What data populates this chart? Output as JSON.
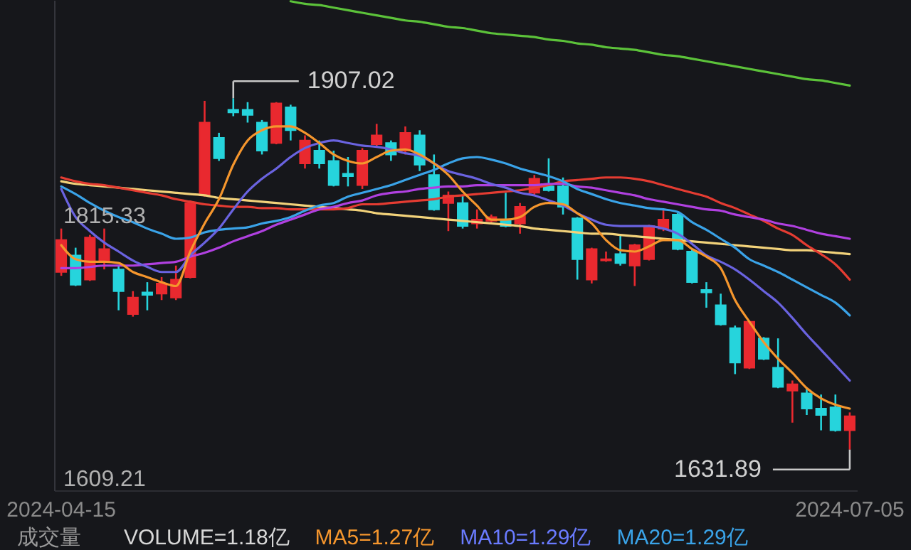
{
  "chart_data": {
    "type": "candlestick",
    "categories": [
      "2024-04-15",
      null,
      null,
      null,
      null,
      null,
      null,
      null,
      null,
      null,
      null,
      null,
      null,
      null,
      null,
      null,
      null,
      null,
      null,
      null,
      null,
      null,
      null,
      null,
      null,
      null,
      null,
      null,
      null,
      null,
      null,
      null,
      null,
      null,
      null,
      null,
      null,
      null,
      null,
      null,
      null,
      null,
      null,
      null,
      null,
      null,
      null,
      null,
      null,
      null,
      null,
      null,
      null,
      null,
      null,
      "2024-07-05"
    ],
    "ohlc": [
      [
        1771,
        1805,
        1768,
        1796
      ],
      [
        1784,
        1790,
        1760,
        1761
      ],
      [
        1765,
        1800,
        1764,
        1798
      ],
      [
        1780,
        1805,
        1773,
        1789
      ],
      [
        1773,
        1776,
        1741,
        1756
      ],
      [
        1738,
        1756,
        1736,
        1751
      ],
      [
        1755,
        1763,
        1741,
        1753
      ],
      [
        1754,
        1767,
        1749,
        1762
      ],
      [
        1751,
        1776,
        1749,
        1765
      ],
      [
        1767,
        1827,
        1766,
        1825
      ],
      [
        1831,
        1905,
        1830,
        1888
      ],
      [
        1876,
        1880,
        1858,
        1860
      ],
      [
        1898,
        1907.02,
        1893,
        1896
      ],
      [
        1898,
        1904,
        1888,
        1894
      ],
      [
        1888,
        1890,
        1863,
        1866
      ],
      [
        1872,
        1904,
        1871,
        1903
      ],
      [
        1900,
        1902,
        1874,
        1882
      ],
      [
        1856,
        1878,
        1852,
        1874
      ],
      [
        1866,
        1874,
        1852,
        1856
      ],
      [
        1858,
        1866,
        1838,
        1839
      ],
      [
        1848,
        1861,
        1838,
        1846
      ],
      [
        1839,
        1868,
        1836,
        1866
      ],
      [
        1871,
        1887,
        1869,
        1878
      ],
      [
        1872,
        1874,
        1858,
        1863
      ],
      [
        1866,
        1885,
        1863,
        1880
      ],
      [
        1878,
        1882,
        1850,
        1855
      ],
      [
        1847,
        1863,
        1819,
        1820
      ],
      [
        1825,
        1834,
        1803,
        1831
      ],
      [
        1825,
        1831,
        1805,
        1807
      ],
      [
        1809,
        1820,
        1805,
        1812
      ],
      [
        1811,
        1816,
        1809,
        1814
      ],
      [
        1812,
        1833,
        1806,
        1807
      ],
      [
        1809,
        1825,
        1801,
        1822
      ],
      [
        1833,
        1847,
        1831,
        1844
      ],
      [
        1838,
        1860,
        1834,
        1835
      ],
      [
        1838,
        1845,
        1816,
        1822
      ],
      [
        1813,
        1814,
        1765,
        1781
      ],
      [
        1765,
        1790,
        1762,
        1789
      ],
      [
        1780,
        1787,
        1779,
        1781
      ],
      [
        1785,
        1800,
        1776,
        1778
      ],
      [
        1776,
        1793,
        1760,
        1792
      ],
      [
        1781,
        1808,
        1780,
        1807
      ],
      [
        1805,
        1820,
        1803,
        1812
      ],
      [
        1816,
        1817,
        1788,
        1789
      ],
      [
        1787,
        1789,
        1762,
        1763
      ],
      [
        1757,
        1763,
        1743,
        1755
      ],
      [
        1745,
        1754,
        1729,
        1730
      ],
      [
        1727,
        1729,
        1691,
        1700
      ],
      [
        1696,
        1733,
        1695,
        1732
      ],
      [
        1719,
        1720,
        1702,
        1703
      ],
      [
        1696,
        1719,
        1680,
        1681
      ],
      [
        1678,
        1686,
        1653,
        1683
      ],
      [
        1676,
        1680,
        1659,
        1664
      ],
      [
        1664,
        1675,
        1647,
        1659
      ],
      [
        1665,
        1675,
        1646,
        1647
      ],
      [
        1647,
        1661,
        1631.89,
        1658
      ]
    ],
    "colors": [
      "#e9292f",
      "#26d4dc",
      "#e9292f",
      "#e9292f",
      "#26d4dc",
      "#e9292f",
      "#26d4dc",
      "#e9292f",
      "#e9292f",
      "#e9292f",
      "#e9292f",
      "#26d4dc",
      "#26d4dc",
      "#26d4dc",
      "#26d4dc",
      "#e9292f",
      "#26d4dc",
      "#e9292f",
      "#26d4dc",
      "#26d4dc",
      "#26d4dc",
      "#e9292f",
      "#e9292f",
      "#26d4dc",
      "#e9292f",
      "#26d4dc",
      "#26d4dc",
      "#e9292f",
      "#26d4dc",
      "#e9292f",
      "#e9292f",
      "#26d4dc",
      "#e9292f",
      "#e9292f",
      "#26d4dc",
      "#26d4dc",
      "#26d4dc",
      "#e9292f",
      "#e9292f",
      "#26d4dc",
      "#e9292f",
      "#e9292f",
      "#e9292f",
      "#26d4dc",
      "#26d4dc",
      "#26d4dc",
      "#26d4dc",
      "#26d4dc",
      "#e9292f",
      "#26d4dc",
      "#26d4dc",
      "#e9292f",
      "#26d4dc",
      "#26d4dc",
      "#26d4dc",
      "#e9292f"
    ],
    "series": [
      {
        "type": "line",
        "color": "#5cc23a",
        "values": [
          null,
          null,
          null,
          null,
          null,
          null,
          null,
          null,
          null,
          null,
          null,
          null,
          null,
          null,
          null,
          null,
          1983,
          1981,
          1980,
          1978,
          1976,
          1974,
          1972,
          1970,
          1968,
          1967,
          1965,
          1963,
          1962,
          1960,
          1958,
          1957,
          1956,
          1955,
          1953,
          1952,
          1950,
          1949,
          1947,
          1946,
          1945,
          1943,
          1941,
          1940,
          1938,
          1936,
          1934,
          1932,
          1930,
          1928,
          1926,
          1924,
          1922,
          1921,
          1919,
          1917
        ]
      },
      {
        "type": "line",
        "color": "#f2d27a",
        "values": [
          1842,
          1840,
          1839,
          1838,
          1837,
          1836,
          1835,
          1834,
          1833,
          1832,
          1831,
          1829,
          1828,
          1827,
          1826,
          1825,
          1824,
          1823,
          1822,
          1821,
          1820,
          1819,
          1817,
          1816,
          1815,
          1814,
          1813,
          1812,
          1811,
          1810,
          1809,
          1808,
          1807,
          1805,
          1804,
          1803,
          1802,
          1801,
          1801,
          1800,
          1799,
          1798,
          1797,
          1796,
          1795,
          1794,
          1793,
          1792,
          1791,
          1790,
          1789,
          1788,
          1788,
          1787,
          1786,
          1785
        ]
      },
      {
        "type": "line",
        "color": "#e53c32",
        "values": [
          1845,
          1842,
          1840,
          1839,
          1837,
          1835,
          1833,
          1831,
          1828,
          1826,
          1824,
          1823,
          1822,
          1822,
          1821,
          1821,
          1820,
          1820,
          1820,
          1820,
          1821,
          1824,
          1824,
          1825,
          1826,
          1827,
          1828,
          1830,
          1831,
          1832,
          1833,
          1834,
          1835,
          1837,
          1839,
          1842,
          1843,
          1844,
          1845,
          1845,
          1844,
          1842,
          1839,
          1836,
          1833,
          1830,
          1825,
          1821,
          1816,
          1811,
          1805,
          1800,
          1792,
          1785,
          1777,
          1765
        ]
      },
      {
        "type": "line",
        "color": "#b040e0",
        "values": [
          1774,
          1774,
          1775,
          1776,
          1776,
          1776,
          1777,
          1778,
          1779,
          1783,
          1786,
          1790,
          1795,
          1799,
          1803,
          1808,
          1812,
          1816,
          1820,
          1822,
          1825,
          1827,
          1831,
          1833,
          1834,
          1836,
          1837,
          1838,
          1838,
          1839,
          1839,
          1839,
          1839,
          1839,
          1840,
          1840,
          1838,
          1837,
          1835,
          1833,
          1831,
          1828,
          1826,
          1824,
          1822,
          1820,
          1819,
          1816,
          1814,
          1812,
          1809,
          1807,
          1804,
          1801,
          1799,
          1797
        ]
      },
      {
        "type": "line",
        "color": "#3aa3e8",
        "values": [
          1838,
          1832,
          1825,
          1819,
          1814,
          1810,
          1805,
          1801,
          1797,
          1798,
          1802,
          1804,
          1805,
          1806,
          1809,
          1811,
          1814,
          1819,
          1823,
          1825,
          1830,
          1833,
          1836,
          1839,
          1843,
          1847,
          1851,
          1856,
          1860,
          1861,
          1859,
          1856,
          1852,
          1849,
          1846,
          1842,
          1836,
          1832,
          1828,
          1825,
          1823,
          1821,
          1820,
          1818,
          1810,
          1804,
          1797,
          1790,
          1781,
          1776,
          1771,
          1765,
          1759,
          1753,
          1747,
          1737
        ]
      },
      {
        "type": "line",
        "color": "#6a63e0",
        "values": [
          1836,
          1814,
          1803,
          1794,
          1787,
          1780,
          1775,
          1771,
          1771,
          1784,
          1794,
          1805,
          1820,
          1834,
          1844,
          1852,
          1861,
          1868,
          1872,
          1874,
          1872,
          1870,
          1869,
          1867,
          1864,
          1862,
          1856,
          1850,
          1847,
          1844,
          1840,
          1837,
          1833,
          1831,
          1827,
          1823,
          1817,
          1812,
          1808,
          1807,
          1807,
          1807,
          1805,
          1801,
          1793,
          1784,
          1779,
          1773,
          1765,
          1756,
          1747,
          1735,
          1722,
          1710,
          1698,
          1686
        ]
      },
      {
        "type": "line",
        "color": "#f5962d",
        "values": [
          1792,
          1781,
          1779,
          1779,
          1778,
          1771,
          1767,
          1763,
          1760,
          1787,
          1809,
          1828,
          1855,
          1874,
          1882,
          1885,
          1885,
          1880,
          1872,
          1863,
          1858,
          1856,
          1861,
          1866,
          1867,
          1863,
          1856,
          1847,
          1834,
          1823,
          1812,
          1812,
          1814,
          1822,
          1825,
          1824,
          1817,
          1809,
          1796,
          1788,
          1787,
          1791,
          1796,
          1796,
          1789,
          1783,
          1774,
          1749,
          1732,
          1716,
          1703,
          1692,
          1680,
          1672,
          1667,
          1664
        ]
      }
    ],
    "ylim": [
      1600,
      1984
    ],
    "yticks": [
      1609.21,
      1815.33
    ],
    "annotations": [
      "1907.02",
      "1631.89",
      "成交量",
      "VOLUME=1.18亿",
      "MA5=1.27亿",
      "MA10=1.29亿",
      "MA20=1.29亿"
    ]
  }
}
